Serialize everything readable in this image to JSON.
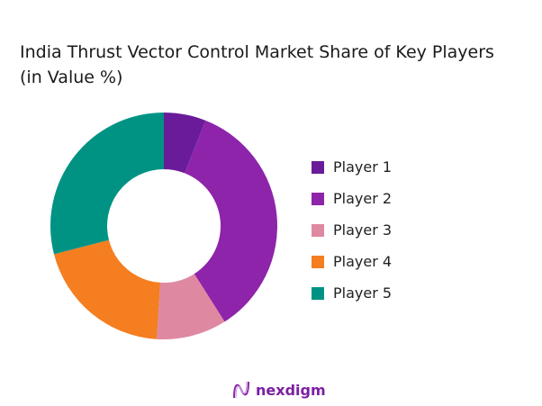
{
  "chart_data": {
    "type": "pie",
    "variant": "donut",
    "title": "India Thrust Vector Control Market Share of Key Players (in Value %)",
    "categories": [
      "Player 1",
      "Player 2",
      "Player 3",
      "Player 4",
      "Player 5"
    ],
    "values": [
      6,
      35,
      10,
      20,
      29
    ],
    "colors": [
      "#6a1b9a",
      "#8e24aa",
      "#df88a1",
      "#f47e20",
      "#009383"
    ],
    "legend": "right"
  },
  "brand": {
    "name": "nexdigm",
    "color": "#7b1fa2"
  }
}
